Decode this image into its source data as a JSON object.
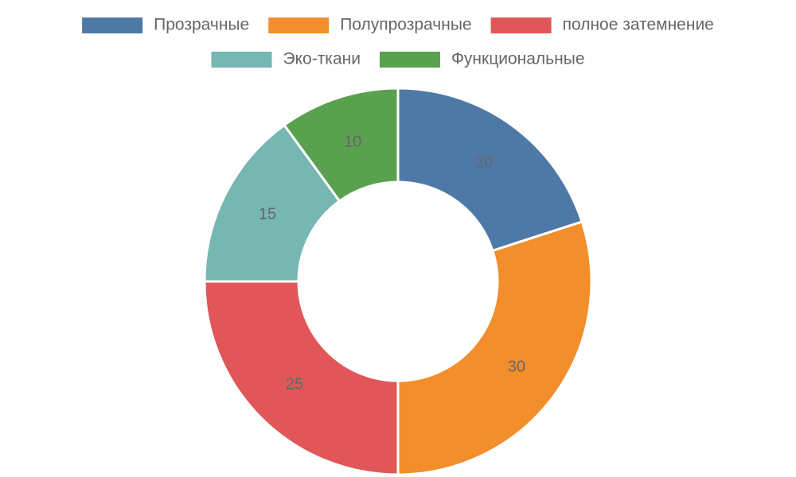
{
  "chart_data": {
    "type": "donut",
    "categories": [
      "Прозрачные",
      "Полупрозрачные",
      "полное затемнение",
      "Эко-ткани",
      "Функциональные"
    ],
    "values": [
      20,
      30,
      25,
      15,
      10
    ],
    "colors": [
      "#4e79a7",
      "#f28e2b",
      "#e15759",
      "#76b7b2",
      "#59a14f"
    ],
    "legend": "top"
  }
}
